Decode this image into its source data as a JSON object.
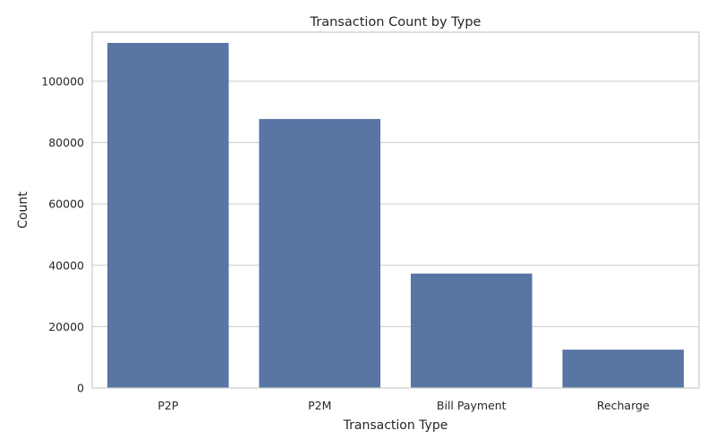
{
  "chart_data": {
    "type": "bar",
    "title": "Transaction Count by Type",
    "xlabel": "Transaction Type",
    "ylabel": "Count",
    "categories": [
      "P2P",
      "P2M",
      "Bill Payment",
      "Recharge"
    ],
    "values": [
      112500,
      87700,
      37300,
      12500
    ],
    "ylim": [
      0,
      116000
    ],
    "yticks": [
      0,
      20000,
      40000,
      60000,
      80000,
      100000
    ],
    "grid": true,
    "bar_color": "#5875a4",
    "grid_color": "#cccccc"
  }
}
